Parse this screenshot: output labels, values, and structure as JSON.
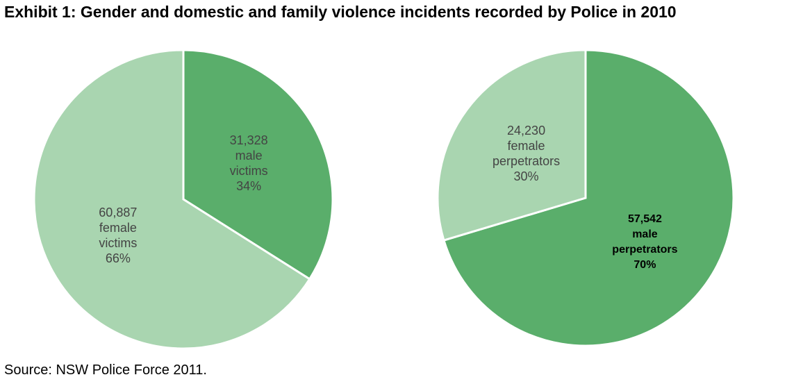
{
  "title": "Exhibit 1: Gender and domestic and family violence incidents recorded by Police in 2010",
  "source": "Source: NSW Police Force 2011.",
  "chart_data": [
    {
      "type": "pie",
      "categories": [
        "male victims",
        "female victims"
      ],
      "values": [
        31328,
        60887
      ],
      "value_labels": [
        "31,328",
        "60,887"
      ],
      "percents": [
        34,
        66
      ],
      "percent_labels": [
        "34%",
        "66%"
      ],
      "colors": [
        "#5aae6b",
        "#a9d5b0"
      ]
    },
    {
      "type": "pie",
      "categories": [
        "male perpetrators",
        "female perpetrators"
      ],
      "values": [
        57542,
        24230
      ],
      "value_labels": [
        "57,542",
        "24,230"
      ],
      "percents": [
        70,
        30
      ],
      "percent_labels": [
        "70%",
        "30%"
      ],
      "colors": [
        "#5aae6b",
        "#a9d5b0"
      ]
    }
  ]
}
